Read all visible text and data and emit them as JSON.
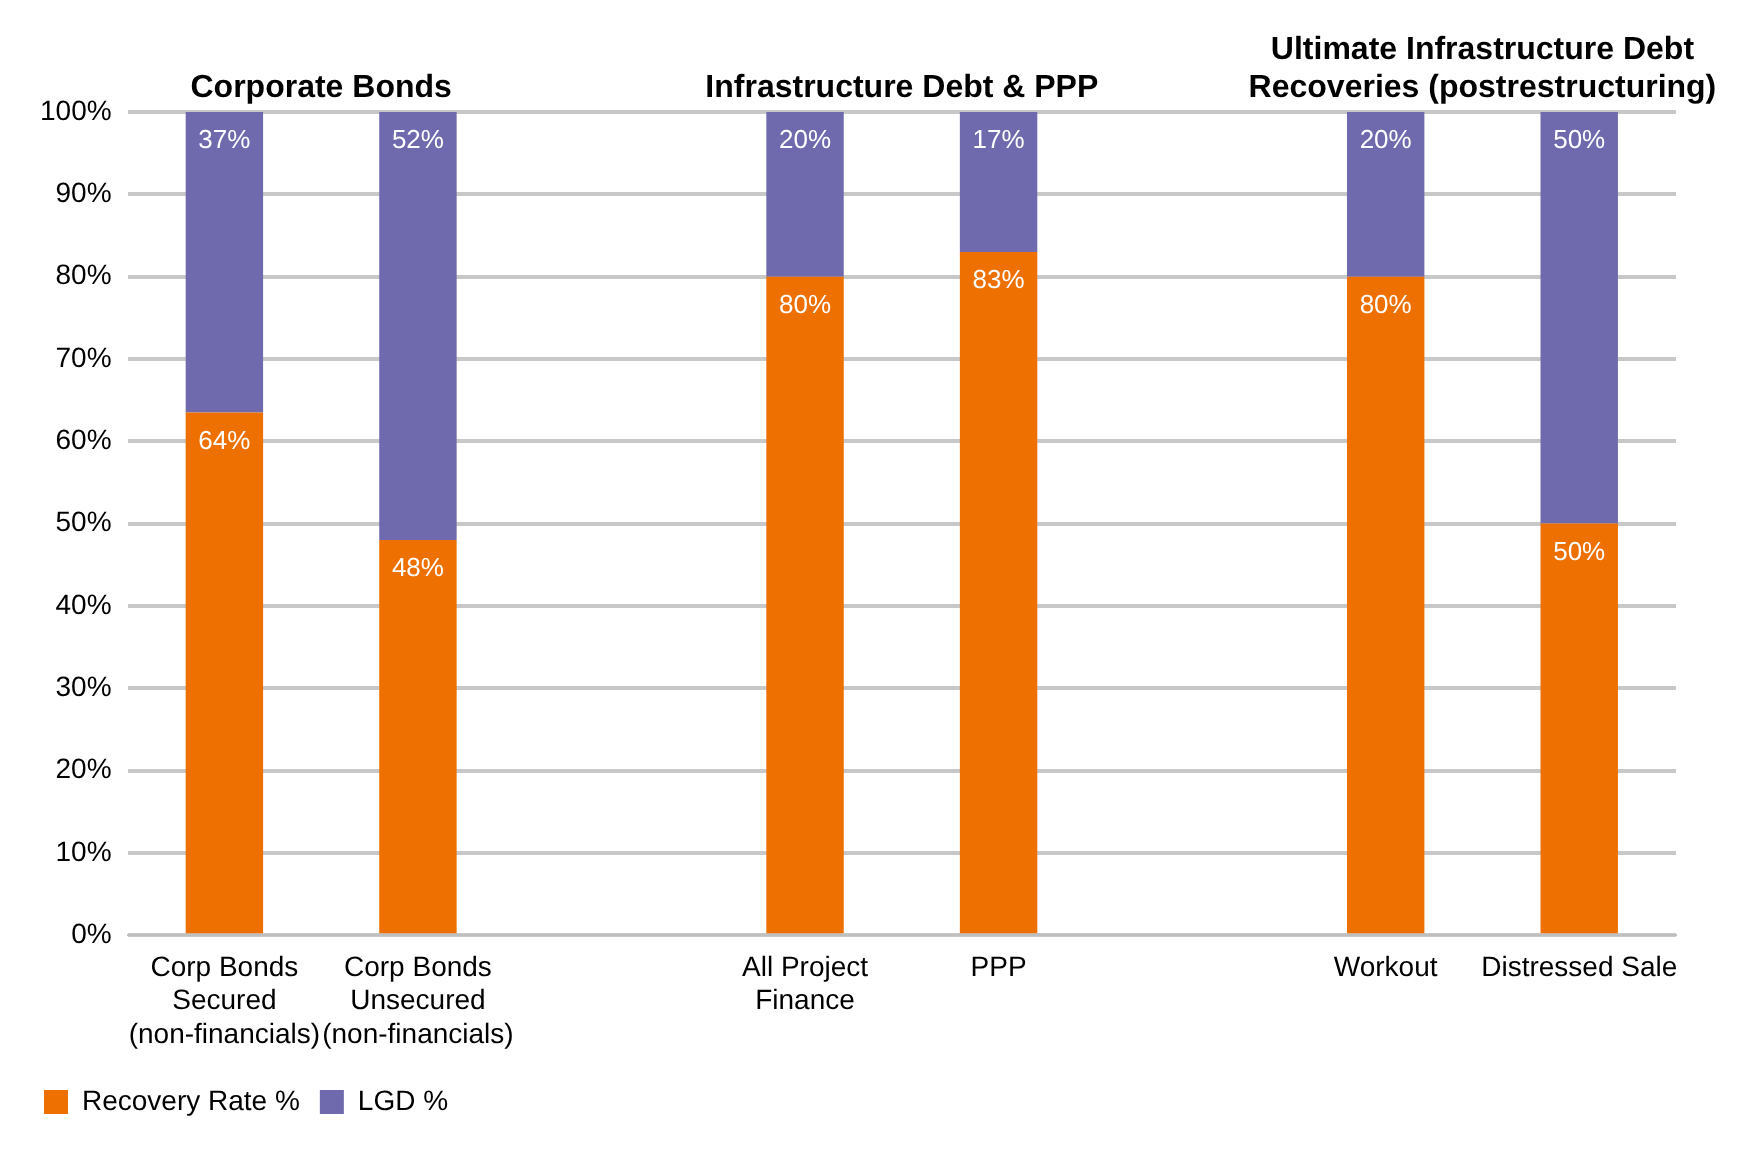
{
  "chart_data": {
    "type": "bar",
    "stacked": true,
    "categories": [
      "Corp Bonds Secured (non-financials)",
      "Corp Bonds Unsecured (non-financials)",
      null,
      "All Project Finance",
      "PPP",
      null,
      "Workout",
      "Distressed Sale"
    ],
    "series": [
      {
        "name": "Recovery Rate %",
        "color": "#ed7000",
        "values": [
          63.5,
          48,
          null,
          80,
          83,
          null,
          80,
          50
        ],
        "value_labels": [
          "64%",
          "48%",
          null,
          "80%",
          "83%",
          null,
          "80%",
          "50%"
        ]
      },
      {
        "name": "LGD %",
        "color": "#6f6aae",
        "values": [
          36.5,
          52,
          null,
          20,
          17,
          null,
          20,
          50
        ],
        "value_labels": [
          "37%",
          "52%",
          null,
          "20%",
          "17%",
          null,
          "20%",
          "50%"
        ]
      }
    ],
    "ylim": [
      0,
      100
    ],
    "yticks": [
      {
        "value": 0,
        "label": "0%"
      },
      {
        "value": 10,
        "label": "10%"
      },
      {
        "value": 20,
        "label": "20%"
      },
      {
        "value": 30,
        "label": "30%"
      },
      {
        "value": 40,
        "label": "40%"
      },
      {
        "value": 50,
        "label": "50%"
      },
      {
        "value": 60,
        "label": "60%"
      },
      {
        "value": 70,
        "label": "70%"
      },
      {
        "value": 80,
        "label": "80%"
      },
      {
        "value": 90,
        "label": "90%"
      },
      {
        "value": 100,
        "label": "100%"
      }
    ],
    "grid": "y",
    "legend": "bottom left",
    "annotations": [
      "Corporate Bonds",
      "Infrastructure Debt & PPP",
      "Ultimate Infrastructure Debt Recoveries (postrestructuring)"
    ]
  }
}
